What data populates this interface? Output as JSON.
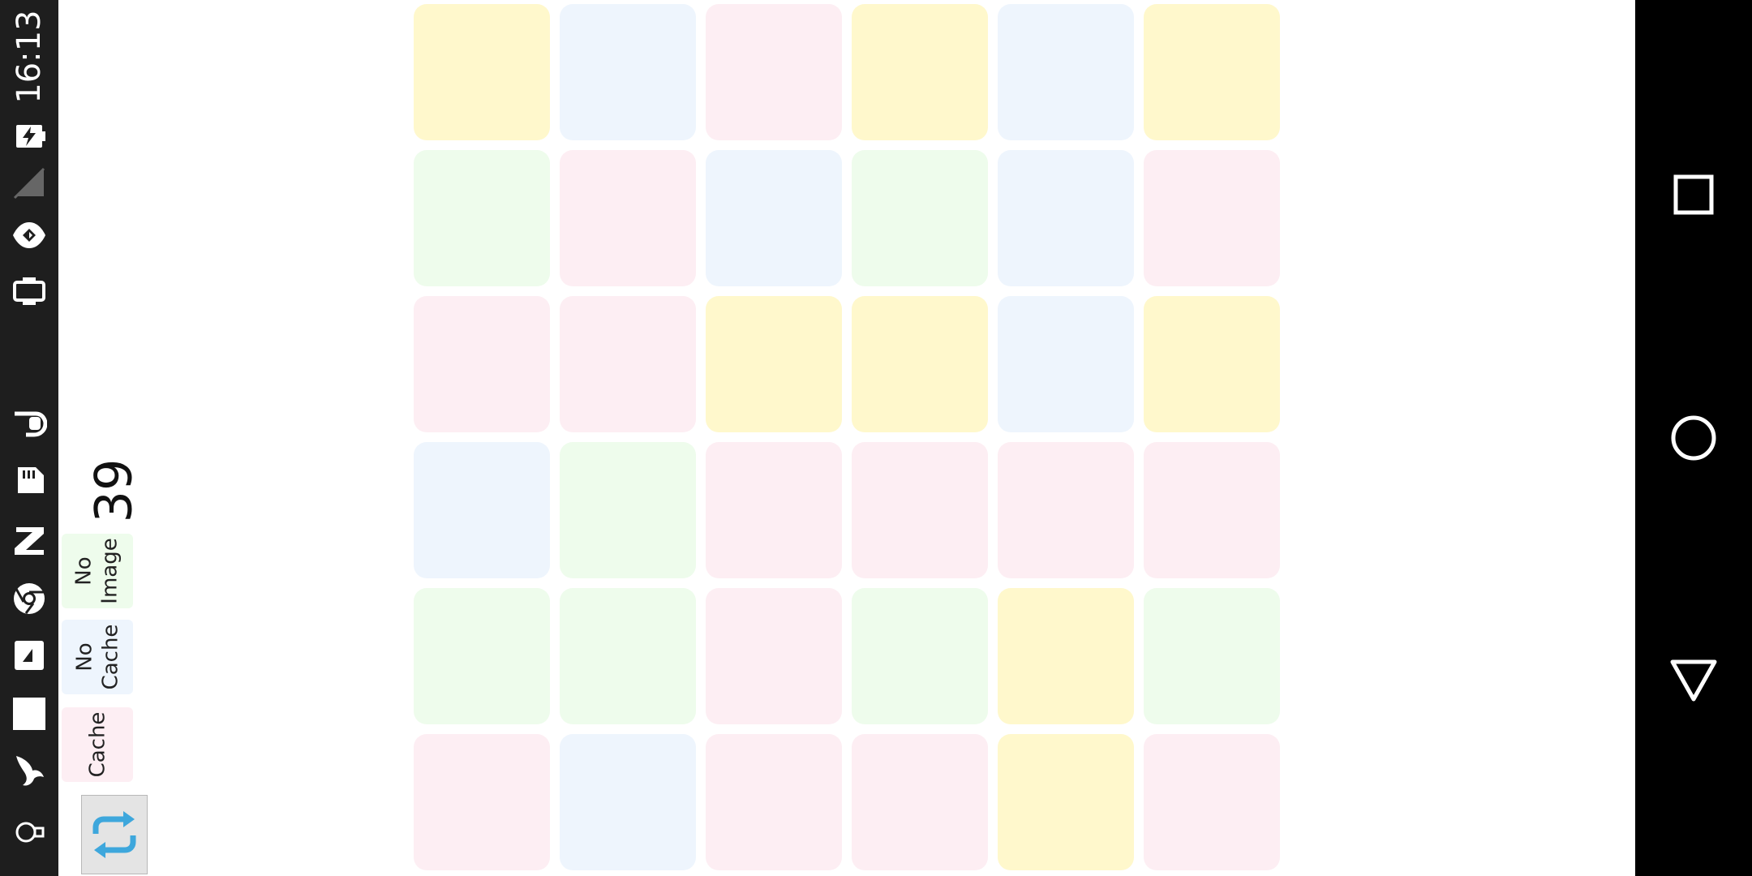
{
  "status_bar": {
    "time": "16:13",
    "icons": [
      "battery-charging-icon",
      "no-sim-icon",
      "data-saver-icon",
      "cast-icon",
      "shield-icon",
      "sd-card-icon",
      "zeta-icon",
      "chrome-icon",
      "photo-icon",
      "square-app-icon",
      "bird-icon",
      "bulb-icon"
    ]
  },
  "controls": {
    "counter": "39",
    "no_image_label": "No\nImage",
    "no_cache_label": "No\nCache",
    "cache_label": "Cache",
    "refresh_icon": "refresh-icon"
  },
  "nav": {
    "icons": [
      "recent-apps-icon",
      "home-icon",
      "back-icon"
    ]
  },
  "colors": {
    "yellow": "#fff8cc",
    "blue": "#eef5fd",
    "pink": "#fdeef3",
    "green": "#eefcec"
  },
  "grid": {
    "rows": [
      [
        "yellow",
        "blue",
        "pink",
        "yellow",
        "blue",
        "yellow"
      ],
      [
        "green",
        "pink",
        "blue",
        "green",
        "blue",
        "pink"
      ],
      [
        "pink",
        "pink",
        "yellow",
        "yellow",
        "blue",
        "yellow"
      ],
      [
        "blue",
        "green",
        "pink",
        "pink",
        "pink",
        "pink"
      ],
      [
        "green",
        "green",
        "pink",
        "green",
        "yellow",
        "green"
      ],
      [
        "pink",
        "blue",
        "pink",
        "pink",
        "yellow",
        "pink"
      ]
    ]
  }
}
